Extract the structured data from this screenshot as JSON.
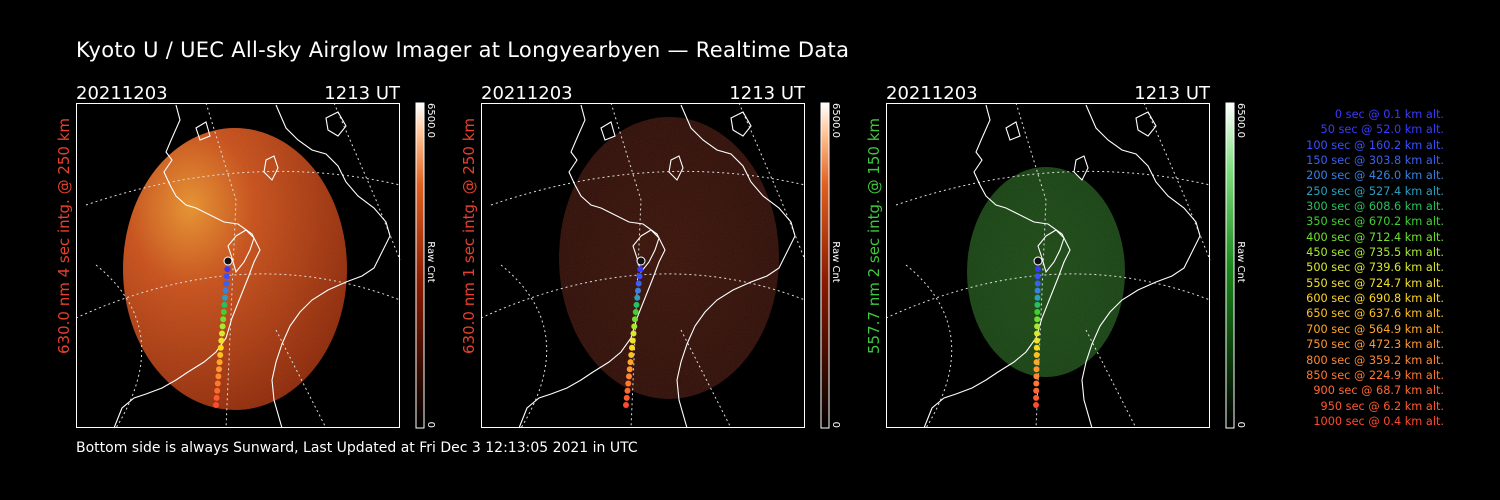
{
  "title": "Kyoto U / UEC All-sky Airglow Imager at Longyearbyen — Realtime Data",
  "footer": "Bottom side is always Sunward, Last Updated at Fri Dec  3 12:13:05 2021 in UTC",
  "colorbar": {
    "max_label": "6500.0",
    "min_label": "0",
    "unit_label": "Raw Cnt"
  },
  "panels": [
    {
      "date": "20211203",
      "time": "1213 UT",
      "ylabel": "630.0 nm 4 sec intg. @ 250 km",
      "label_color": "#e8402c",
      "glow": "bright-red"
    },
    {
      "date": "20211203",
      "time": "1213 UT",
      "ylabel": "630.0 nm 1 sec intg. @ 250 km",
      "label_color": "#e8402c",
      "glow": "dim-red"
    },
    {
      "date": "20211203",
      "time": "1213 UT",
      "ylabel": "557.7 nm 2 sec intg. @ 150 km",
      "label_color": "#3ec83e",
      "glow": "green"
    }
  ],
  "trajectory_legend": [
    {
      "text": "0 sec @   0.1 km alt.",
      "color": "#3a3aff"
    },
    {
      "text": "50 sec @  52.0 km alt.",
      "color": "#3a3aff"
    },
    {
      "text": "100 sec @ 160.2 km alt.",
      "color": "#3a50ff"
    },
    {
      "text": "150 sec @ 303.8 km alt.",
      "color": "#3a60f0"
    },
    {
      "text": "200 sec @ 426.0 km alt.",
      "color": "#3a80e0"
    },
    {
      "text": "250 sec @ 527.4 km alt.",
      "color": "#2aa0c0"
    },
    {
      "text": "300 sec @ 608.6 km alt.",
      "color": "#28c060"
    },
    {
      "text": "350 sec @ 670.2 km alt.",
      "color": "#40d030"
    },
    {
      "text": "400 sec @ 712.4 km alt.",
      "color": "#70e030"
    },
    {
      "text": "450 sec @ 735.5 km alt.",
      "color": "#a8e830"
    },
    {
      "text": "500 sec @ 739.6 km alt.",
      "color": "#d8e830"
    },
    {
      "text": "550 sec @ 724.7 km alt.",
      "color": "#f0e030"
    },
    {
      "text": "600 sec @ 690.8 km alt.",
      "color": "#ffd820"
    },
    {
      "text": "650 sec @ 637.6 km alt.",
      "color": "#ffc020"
    },
    {
      "text": "700 sec @ 564.9 km alt.",
      "color": "#ffa828"
    },
    {
      "text": "750 sec @ 472.3 km alt.",
      "color": "#ff9830"
    },
    {
      "text": "800 sec @ 359.2 km alt.",
      "color": "#ff8830"
    },
    {
      "text": "850 sec @ 224.9 km alt.",
      "color": "#ff7830"
    },
    {
      "text": "900 sec @  68.7 km alt.",
      "color": "#ff6830"
    },
    {
      "text": "950 sec @   6.2 km alt.",
      "color": "#ff5a30"
    },
    {
      "text": "1000 sec @   0.4 km alt.",
      "color": "#ff4a30"
    }
  ]
}
